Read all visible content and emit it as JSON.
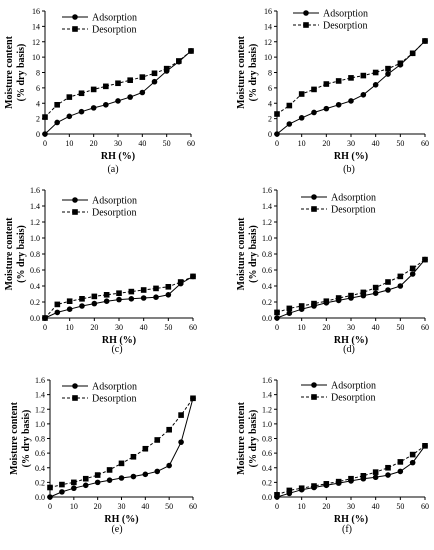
{
  "chart_data": [
    {
      "type": "line",
      "panel_label": "(a)",
      "xlabel": "RH (%)",
      "ylabel_line1": "Moisture content",
      "ylabel_line2": "(% dry basis)",
      "xlim": [
        0,
        60
      ],
      "ylim": [
        0,
        16
      ],
      "xticks": [
        0,
        10,
        20,
        30,
        40,
        50,
        60
      ],
      "yticks": [
        0,
        2,
        4,
        6,
        8,
        10,
        12,
        14,
        16
      ],
      "series": [
        {
          "name": "Adsorption",
          "marker": "circle",
          "linestyle": "solid",
          "x": [
            0,
            5,
            10,
            15,
            20,
            25,
            30,
            35,
            40,
            45,
            50,
            55,
            60
          ],
          "y": [
            0,
            1.5,
            2.3,
            2.9,
            3.4,
            3.8,
            4.3,
            4.8,
            5.4,
            6.8,
            8.2,
            9.4,
            10.8
          ]
        },
        {
          "name": "Desorption",
          "marker": "square",
          "linestyle": "dashed",
          "x": [
            0,
            5,
            10,
            15,
            20,
            25,
            30,
            35,
            40,
            45,
            50,
            55,
            60
          ],
          "y": [
            2.2,
            3.8,
            4.8,
            5.3,
            5.8,
            6.2,
            6.6,
            7.0,
            7.4,
            7.9,
            8.5,
            9.5,
            10.8
          ]
        }
      ]
    },
    {
      "type": "line",
      "panel_label": "(b)",
      "xlabel": "RH (%)",
      "ylabel_line1": "Moisture content",
      "ylabel_line2": "(% dry basis)",
      "xlim": [
        0,
        60
      ],
      "ylim": [
        0,
        16
      ],
      "xticks": [
        0,
        10,
        20,
        30,
        40,
        50,
        60
      ],
      "yticks": [
        0,
        2,
        4,
        6,
        8,
        10,
        12,
        14,
        16
      ],
      "series": [
        {
          "name": "Adsorption",
          "marker": "circle",
          "linestyle": "solid",
          "x": [
            0,
            5,
            10,
            15,
            20,
            25,
            30,
            35,
            40,
            45,
            50,
            55,
            60
          ],
          "y": [
            0,
            1.3,
            2.1,
            2.8,
            3.3,
            3.8,
            4.3,
            5.1,
            6.4,
            7.8,
            9.0,
            10.5,
            12.1
          ]
        },
        {
          "name": "Desorption",
          "marker": "square",
          "linestyle": "dashed",
          "x": [
            0,
            5,
            10,
            15,
            20,
            25,
            30,
            35,
            40,
            45,
            50,
            55,
            60
          ],
          "y": [
            2.6,
            3.7,
            5.2,
            5.8,
            6.5,
            6.9,
            7.3,
            7.6,
            8.0,
            8.5,
            9.2,
            10.5,
            12.1
          ]
        }
      ]
    },
    {
      "type": "line",
      "panel_label": "(c)",
      "xlabel": "RH (%)",
      "ylabel_line1": "Moisture content",
      "ylabel_line2": "(% dry basis)",
      "xlim": [
        0,
        60
      ],
      "ylim": [
        0,
        1.6
      ],
      "xticks": [
        0,
        10,
        20,
        30,
        40,
        50,
        60
      ],
      "yticks": [
        0,
        0.2,
        0.4,
        0.6,
        0.8,
        1.0,
        1.2,
        1.4,
        1.6
      ],
      "series": [
        {
          "name": "Adsorption",
          "marker": "circle",
          "linestyle": "solid",
          "x": [
            0,
            5,
            10,
            15,
            20,
            25,
            30,
            35,
            40,
            45,
            50,
            55,
            60
          ],
          "y": [
            0,
            0.07,
            0.11,
            0.15,
            0.18,
            0.21,
            0.23,
            0.24,
            0.25,
            0.26,
            0.29,
            0.43,
            0.52
          ]
        },
        {
          "name": "Desorption",
          "marker": "square",
          "linestyle": "dashed",
          "x": [
            0,
            5,
            10,
            15,
            20,
            25,
            30,
            35,
            40,
            45,
            50,
            55,
            60
          ],
          "y": [
            0,
            0.17,
            0.21,
            0.24,
            0.27,
            0.29,
            0.31,
            0.33,
            0.35,
            0.37,
            0.39,
            0.45,
            0.52
          ]
        }
      ]
    },
    {
      "type": "line",
      "panel_label": "(d)",
      "xlabel": "RH (%)",
      "ylabel_line1": "Moisture content",
      "ylabel_line2": "(% dry basis)",
      "xlim": [
        0,
        60
      ],
      "ylim": [
        0,
        1.6
      ],
      "xticks": [
        0,
        10,
        20,
        30,
        40,
        50,
        60
      ],
      "yticks": [
        0,
        0.2,
        0.4,
        0.6,
        0.8,
        1.0,
        1.2,
        1.4,
        1.6
      ],
      "series": [
        {
          "name": "Adsorption",
          "marker": "circle",
          "linestyle": "solid",
          "x": [
            0,
            5,
            10,
            15,
            20,
            25,
            30,
            35,
            40,
            45,
            50,
            55,
            60
          ],
          "y": [
            0,
            0.06,
            0.11,
            0.15,
            0.19,
            0.22,
            0.25,
            0.28,
            0.31,
            0.35,
            0.4,
            0.55,
            0.73
          ]
        },
        {
          "name": "Desorption",
          "marker": "square",
          "linestyle": "dashed",
          "x": [
            0,
            5,
            10,
            15,
            20,
            25,
            30,
            35,
            40,
            45,
            50,
            55,
            60
          ],
          "y": [
            0.07,
            0.12,
            0.15,
            0.18,
            0.21,
            0.25,
            0.28,
            0.32,
            0.38,
            0.45,
            0.52,
            0.62,
            0.73
          ]
        }
      ]
    },
    {
      "type": "line",
      "panel_label": "(e)",
      "xlabel": "RH (%)",
      "ylabel_line1": "Moisture content",
      "ylabel_line2": "(% dry basis)",
      "xlim": [
        0,
        60
      ],
      "ylim": [
        0,
        1.6
      ],
      "xticks": [
        0,
        10,
        20,
        30,
        40,
        50,
        60
      ],
      "yticks": [
        0,
        0.2,
        0.4,
        0.6,
        0.8,
        1.0,
        1.2,
        1.4,
        1.6
      ],
      "series": [
        {
          "name": "Adsorption",
          "marker": "circle",
          "linestyle": "solid",
          "x": [
            0,
            5,
            10,
            15,
            20,
            25,
            30,
            35,
            40,
            45,
            50,
            55,
            60
          ],
          "y": [
            0,
            0.07,
            0.12,
            0.16,
            0.2,
            0.23,
            0.26,
            0.28,
            0.31,
            0.35,
            0.43,
            0.75,
            1.35
          ]
        },
        {
          "name": "Desorption",
          "marker": "square",
          "linestyle": "dashed",
          "x": [
            0,
            5,
            10,
            15,
            20,
            25,
            30,
            35,
            40,
            45,
            50,
            55,
            60
          ],
          "y": [
            0.13,
            0.17,
            0.2,
            0.25,
            0.3,
            0.37,
            0.46,
            0.55,
            0.66,
            0.78,
            0.92,
            1.12,
            1.35
          ]
        }
      ]
    },
    {
      "type": "line",
      "panel_label": "(f)",
      "xlabel": "RH (%)",
      "ylabel_line1": "Moisture content",
      "ylabel_line2": "(% dry basis)",
      "xlim": [
        0,
        60
      ],
      "ylim": [
        0,
        1.6
      ],
      "xticks": [
        0,
        10,
        20,
        30,
        40,
        50,
        60
      ],
      "yticks": [
        0,
        0.2,
        0.4,
        0.6,
        0.8,
        1.0,
        1.2,
        1.4,
        1.6
      ],
      "series": [
        {
          "name": "Adsorption",
          "marker": "circle",
          "linestyle": "solid",
          "x": [
            0,
            5,
            10,
            15,
            20,
            25,
            30,
            35,
            40,
            45,
            50,
            55,
            60
          ],
          "y": [
            0,
            0.05,
            0.1,
            0.13,
            0.16,
            0.19,
            0.22,
            0.25,
            0.27,
            0.3,
            0.35,
            0.47,
            0.7
          ]
        },
        {
          "name": "Desorption",
          "marker": "square",
          "linestyle": "dashed",
          "x": [
            0,
            5,
            10,
            15,
            20,
            25,
            30,
            35,
            40,
            45,
            50,
            55,
            60
          ],
          "y": [
            0.03,
            0.09,
            0.12,
            0.15,
            0.18,
            0.21,
            0.25,
            0.29,
            0.34,
            0.4,
            0.48,
            0.58,
            0.7
          ]
        }
      ]
    }
  ]
}
